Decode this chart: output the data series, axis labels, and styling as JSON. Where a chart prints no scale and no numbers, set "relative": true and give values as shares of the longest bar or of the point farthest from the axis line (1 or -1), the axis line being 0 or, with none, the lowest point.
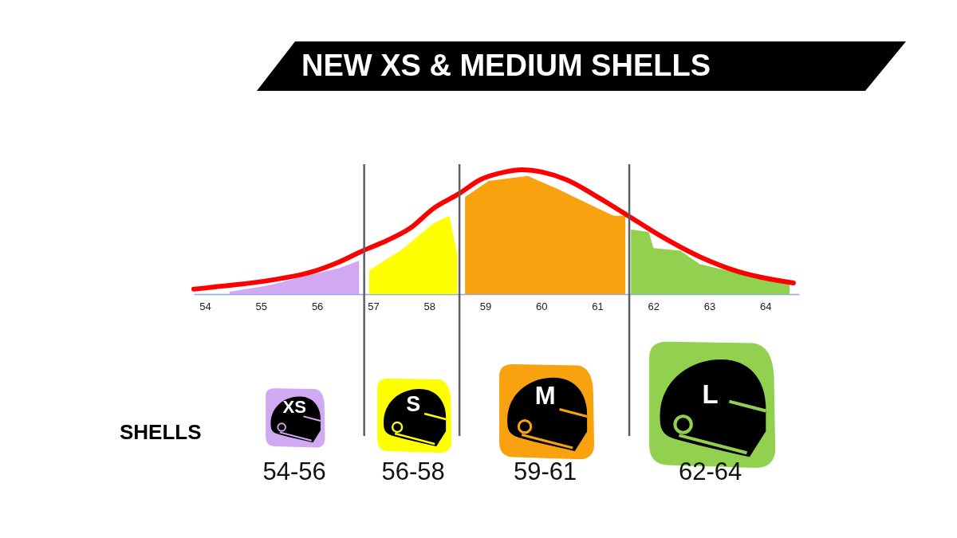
{
  "chart_data": {
    "type": "line",
    "title": "NEW XS & MEDIUM SHELLS",
    "relative": true,
    "xlim": [
      53.8,
      64.6
    ],
    "xticks": [
      54,
      55,
      56,
      57,
      58,
      59,
      60,
      61,
      62,
      63,
      64
    ],
    "legend": "bottom",
    "series": [
      {
        "type": "area",
        "name": "XS",
        "color": "#d1a9f3",
        "x": [
          54.44,
          55.14,
          55.84,
          56.4,
          56.75
        ],
        "values": [
          0.02,
          0.07,
          0.15,
          0.21,
          0.27
        ]
      },
      {
        "type": "area",
        "name": "S",
        "color": "#ffff00",
        "x": [
          56.93,
          57.52,
          58.08,
          58.36,
          58.5
        ],
        "values": [
          0.19,
          0.36,
          0.57,
          0.63,
          0.32
        ]
      },
      {
        "type": "area",
        "name": "M",
        "color": "#f9a20f",
        "x": [
          58.64,
          59.06,
          59.76,
          60.32,
          60.73,
          61.29,
          61.5
        ],
        "values": [
          0.78,
          0.91,
          0.95,
          0.84,
          0.75,
          0.63,
          0.63
        ]
      },
      {
        "type": "area",
        "name": "L",
        "color": "#92d050",
        "x": [
          61.6,
          61.92,
          62.0,
          62.48,
          62.83,
          63.52,
          64.01,
          64.43
        ],
        "values": [
          0.52,
          0.5,
          0.37,
          0.35,
          0.24,
          0.17,
          0.11,
          0.08
        ]
      },
      {
        "type": "line",
        "color": "#ff0000",
        "x": [
          53.8,
          54.44,
          55.14,
          55.84,
          56.4,
          56.82,
          57.24,
          57.66,
          58.08,
          58.54,
          58.91,
          59.33,
          59.65,
          60.03,
          60.45,
          61.01,
          61.55,
          62.12,
          62.83,
          63.52,
          64.5
        ],
        "values": [
          0.04,
          0.07,
          0.11,
          0.17,
          0.26,
          0.35,
          0.43,
          0.53,
          0.69,
          0.81,
          0.92,
          0.98,
          1,
          0.98,
          0.92,
          0.78,
          0.63,
          0.47,
          0.3,
          0.18,
          0.09
        ]
      }
    ],
    "ref_lines": [
      {
        "axis": "x",
        "value": 56.84,
        "color": "#5f5f5f"
      },
      {
        "axis": "x",
        "value": 58.54,
        "color": "#5f5f5f"
      },
      {
        "axis": "x",
        "value": 61.57,
        "color": "#5f5f5f"
      }
    ],
    "annotations": [
      "SHELLS",
      "54-56",
      "56-58",
      "59-61",
      "62-64"
    ]
  }
}
